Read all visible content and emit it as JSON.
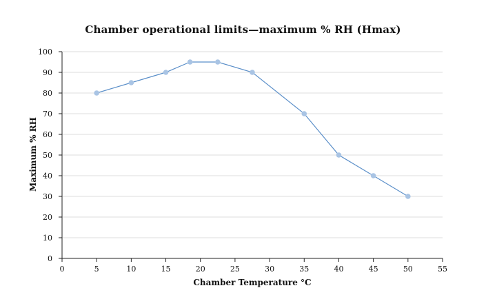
{
  "chart_data": {
    "type": "line",
    "title": "Chamber operational limits—maximum % RH (Hmax)",
    "xlabel": "Chamber Temperature °C",
    "ylabel": "Maximum % RH",
    "xlim": [
      0,
      55
    ],
    "ylim": [
      0,
      100
    ],
    "xticks": [
      0,
      5,
      10,
      15,
      20,
      25,
      30,
      35,
      40,
      45,
      50,
      55
    ],
    "yticks": [
      0,
      10,
      20,
      30,
      40,
      50,
      60,
      70,
      80,
      90,
      100
    ],
    "grid": "horizontal",
    "series": [
      {
        "color": "#5b8fc9",
        "marker_color": "#a9c4e4",
        "x": [
          5,
          10,
          15,
          18.5,
          22.5,
          27.5,
          35,
          40,
          45,
          50
        ],
        "y": [
          80,
          85,
          90,
          95,
          95,
          90,
          70,
          50,
          40,
          30
        ]
      }
    ]
  }
}
